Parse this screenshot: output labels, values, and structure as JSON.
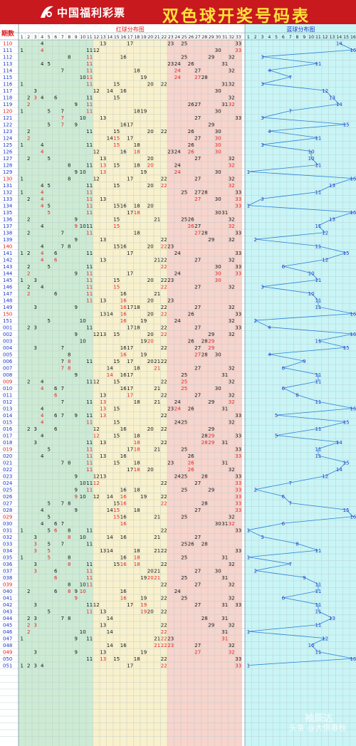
{
  "header": {
    "logo_text": "中国福利彩票",
    "title": "双色球开奖号码表"
  },
  "table": {
    "period_label": "期数",
    "red_section_label": "红球分布图",
    "blue_section_label": "蓝球分布图"
  },
  "watermark": {
    "text": "头条 @大俱春秋",
    "brand": "袖辰达"
  },
  "colors": {
    "header_bg": "#c8191e",
    "title": "#ffe23a",
    "red_zone_1": "#cdebd4",
    "red_zone_2": "#f8f1cc",
    "red_zone_3": "#f7d4cc",
    "blue_zone": "#c9f5f6",
    "red_number": "#e41e1e",
    "blue_number": "#1d36c8",
    "black_number": "#111111",
    "blue_line": "#2a7fd9"
  },
  "chart_data": {
    "type": "table",
    "red_columns": [
      "1",
      "2",
      "3",
      "4",
      "5",
      "6",
      "7",
      "8",
      "9",
      "10",
      "11",
      "12",
      "13",
      "14",
      "15",
      "16",
      "17",
      "18",
      "19",
      "20",
      "21",
      "22",
      "23",
      "24",
      "25",
      "26",
      "27",
      "28",
      "29",
      "30",
      "31",
      "32",
      "33"
    ],
    "blue_columns": [
      "1",
      "2",
      "3",
      "4",
      "5",
      "6",
      "7",
      "8",
      "9",
      "10",
      "11",
      "12",
      "13",
      "14",
      "15",
      "16"
    ],
    "draws": [
      {
        "period": "110",
        "red": [
          4,
          13,
          17,
          23,
          25,
          33
        ],
        "blue": 14
      },
      {
        "period": "111",
        "red": [
          1,
          4,
          11,
          12,
          30,
          33
        ],
        "blue": 16
      },
      {
        "period": "112",
        "red": [
          8,
          11,
          16,
          25,
          29,
          32
        ],
        "blue": 3
      },
      {
        "period": "113",
        "red": [
          4,
          5,
          11,
          23,
          24,
          26,
          31
        ],
        "blue": 11
      },
      {
        "period": "114",
        "red": [
          7,
          11,
          18,
          24,
          27,
          32
        ],
        "blue": 4
      },
      {
        "period": "115",
        "red": [
          10,
          11,
          19,
          24,
          27,
          28
        ],
        "blue": 7
      },
      {
        "period": "116",
        "red": [
          1,
          11,
          15,
          20,
          22,
          31,
          32
        ],
        "blue": 3
      },
      {
        "period": "117",
        "red": [
          3,
          12,
          14,
          16,
          30
        ],
        "blue": 12
      },
      {
        "period": "118",
        "red": [
          2,
          3,
          4,
          6,
          11,
          15,
          32
        ],
        "blue": 13
      },
      {
        "period": "119",
        "red": [
          2,
          9,
          11,
          26,
          27,
          31,
          32
        ],
        "blue": 14
      },
      {
        "period": "120",
        "red": [
          1,
          5,
          7,
          11,
          18,
          19,
          30
        ],
        "blue": 7
      },
      {
        "period": "121",
        "red": [
          7,
          10,
          13,
          27,
          33
        ],
        "blue": 3
      },
      {
        "period": "122",
        "red": [
          5,
          7,
          9,
          16,
          17,
          29
        ],
        "blue": 15
      },
      {
        "period": "123",
        "red": [
          2,
          11,
          15,
          20,
          22,
          26,
          30
        ],
        "blue": 4
      },
      {
        "period": "124",
        "red": [
          2,
          14,
          15,
          17,
          27,
          30
        ],
        "blue": 11
      },
      {
        "period": "125",
        "red": [
          1,
          4,
          11,
          15,
          18,
          26,
          30
        ],
        "blue": 3
      },
      {
        "period": "126",
        "red": [
          4,
          12,
          16,
          18,
          23,
          24,
          26,
          30
        ],
        "blue": 10
      },
      {
        "period": "127",
        "red": [
          2,
          5,
          13,
          20,
          27,
          32
        ],
        "blue": 10
      },
      {
        "period": "128",
        "red": [
          8,
          11,
          13,
          15,
          18,
          20,
          24,
          32
        ],
        "blue": 11
      },
      {
        "period": "129",
        "red": [
          9,
          10,
          13,
          19,
          24,
          30
        ],
        "blue": 1
      },
      {
        "period": "130",
        "red": [
          1,
          8,
          12,
          17,
          22,
          27,
          32
        ],
        "blue": 16
      },
      {
        "period": "131",
        "red": [
          4,
          5,
          11,
          15,
          20,
          22,
          32
        ],
        "blue": 13
      },
      {
        "period": "132",
        "red": [
          1,
          4,
          11,
          25,
          27,
          28,
          33
        ],
        "blue": 11
      },
      {
        "period": "133",
        "red": [
          2,
          4,
          11,
          13,
          27,
          30,
          33
        ],
        "blue": 3
      },
      {
        "period": "134",
        "red": [
          4,
          5,
          11,
          15,
          16,
          18,
          20,
          33
        ],
        "blue": 1
      },
      {
        "period": "135",
        "red": [
          5,
          11,
          17,
          18,
          30,
          31
        ],
        "blue": 16
      },
      {
        "period": "136",
        "red": [
          2,
          9,
          15,
          21,
          25,
          26,
          32
        ],
        "blue": 13
      },
      {
        "period": "137",
        "red": [
          4,
          9,
          10,
          11,
          15,
          26,
          27,
          32
        ],
        "blue": 11
      },
      {
        "period": "138",
        "red": [
          2,
          7,
          11,
          18,
          27,
          28,
          33
        ],
        "blue": 12
      },
      {
        "period": "139",
        "red": [
          9,
          13,
          22,
          29,
          32
        ],
        "blue": 2
      },
      {
        "period": "140",
        "red": [
          4,
          7,
          8,
          15,
          16,
          20,
          22,
          23
        ],
        "blue": 11
      },
      {
        "period": "141",
        "red": [
          1,
          2,
          4,
          6,
          11,
          17,
          24,
          33
        ],
        "blue": 15
      },
      {
        "period": "142",
        "red": [
          4,
          6,
          13,
          21,
          22,
          27,
          32
        ],
        "blue": 12
      },
      {
        "period": "143",
        "red": [
          2,
          5,
          11,
          22,
          30,
          33
        ],
        "blue": 6
      },
      {
        "period": "144",
        "red": [
          2,
          9,
          11,
          17,
          24,
          30,
          33
        ],
        "blue": 10
      },
      {
        "period": "145",
        "red": [
          1,
          3,
          11,
          15,
          20,
          22,
          23,
          30
        ],
        "blue": 11
      },
      {
        "period": "146",
        "red": [
          2,
          4,
          11,
          15,
          22,
          27,
          32
        ],
        "blue": 3
      },
      {
        "period": "147",
        "red": [
          2,
          6,
          11,
          16,
          21
        ],
        "blue": 10
      },
      {
        "period": "148",
        "red": [
          11,
          13,
          16,
          20,
          23
        ],
        "blue": 11
      },
      {
        "period": "149",
        "red": [
          3,
          9,
          16,
          17,
          18,
          22,
          27,
          32
        ],
        "blue": 11
      },
      {
        "period": "150",
        "red": [
          13,
          14,
          16,
          20,
          22,
          26,
          33
        ],
        "blue": 16
      },
      {
        "period": "151",
        "red": [
          5,
          10,
          16,
          19,
          24,
          32
        ],
        "blue": 2
      },
      {
        "period": "001",
        "red": [
          2,
          3,
          11,
          17,
          18,
          22,
          27,
          33
        ],
        "blue": 4
      },
      {
        "period": "002",
        "red": [
          9,
          12,
          13,
          15,
          20,
          22,
          29,
          32
        ],
        "blue": 16
      },
      {
        "period": "003",
        "red": [
          10,
          19,
          20,
          26,
          28,
          29
        ],
        "blue": 11
      },
      {
        "period": "004",
        "red": [
          3,
          7,
          16,
          17,
          22,
          27,
          29
        ],
        "blue": 15
      },
      {
        "period": "005",
        "red": [
          8,
          16,
          19,
          27,
          28,
          30
        ],
        "blue": 4
      },
      {
        "period": "006",
        "red": [
          7,
          8,
          11,
          15,
          17,
          20,
          21,
          22
        ],
        "blue": 9
      },
      {
        "period": "007",
        "red": [
          7,
          8,
          14,
          18,
          21,
          27,
          32
        ],
        "blue": 6
      },
      {
        "period": "008",
        "red": [
          9,
          14,
          16,
          17,
          25,
          31
        ],
        "blue": 11
      },
      {
        "period": "009",
        "red": [
          2,
          4,
          11,
          12,
          15,
          22,
          25,
          32
        ],
        "blue": 11
      },
      {
        "period": "010",
        "red": [
          4,
          6,
          7,
          16,
          17,
          21,
          25,
          30
        ],
        "blue": 6
      },
      {
        "period": "011",
        "red": [
          6,
          13,
          17,
          22,
          27,
          32
        ],
        "blue": 8
      },
      {
        "period": "012",
        "red": [
          7,
          11,
          13,
          18,
          21,
          24,
          29,
          32
        ],
        "blue": 11
      },
      {
        "period": "013",
        "red": [
          4,
          13,
          15,
          23,
          24,
          26,
          31
        ],
        "blue": 16
      },
      {
        "period": "014",
        "red": [
          4,
          6,
          7,
          9,
          11,
          13,
          22,
          33
        ],
        "blue": 5
      },
      {
        "period": "015",
        "red": [
          4,
          11,
          15,
          24,
          25,
          32
        ],
        "blue": 15
      },
      {
        "period": "016",
        "red": [
          2,
          3,
          6,
          12,
          16,
          20,
          22,
          29
        ],
        "blue": 11
      },
      {
        "period": "017",
        "red": [
          4,
          12,
          15,
          18,
          28,
          29,
          33
        ],
        "blue": 5
      },
      {
        "period": "018",
        "red": [
          3,
          11,
          13,
          18,
          22,
          28,
          29,
          31
        ],
        "blue": 14
      },
      {
        "period": "019",
        "red": [
          5,
          11,
          17,
          18,
          21,
          25,
          33
        ],
        "blue": 11
      },
      {
        "period": "020",
        "red": [
          4,
          11,
          13,
          16,
          26,
          33
        ],
        "blue": 11
      },
      {
        "period": "021",
        "red": [
          7,
          8,
          11,
          15,
          18,
          23,
          26,
          31
        ],
        "blue": 15
      },
      {
        "period": "022",
        "red": [
          11,
          17,
          18,
          20,
          26,
          32
        ],
        "blue": 14
      },
      {
        "period": "023",
        "red": [
          9,
          12,
          13,
          24,
          25,
          28,
          33
        ],
        "blue": 12
      },
      {
        "period": "024",
        "red": [
          10,
          11,
          12,
          22,
          27,
          33
        ],
        "blue": 7
      },
      {
        "period": "025",
        "red": [
          9,
          11,
          16,
          18,
          25,
          29,
          33
        ],
        "blue": 2
      },
      {
        "period": "026",
        "red": [
          9,
          10,
          12,
          14,
          16,
          19,
          22,
          33
        ],
        "blue": 6
      },
      {
        "period": "027",
        "red": [
          5,
          7,
          8,
          15,
          16,
          22,
          28,
          33
        ],
        "blue": 7
      },
      {
        "period": "028",
        "red": [
          4,
          9,
          14,
          15,
          18,
          27,
          33
        ],
        "blue": 15
      },
      {
        "period": "029",
        "red": [
          5,
          15,
          16,
          21,
          25,
          32
        ],
        "blue": 16
      },
      {
        "period": "030",
        "red": [
          4,
          6,
          7,
          16,
          30,
          31,
          32
        ],
        "blue": 6
      },
      {
        "period": "031",
        "red": [
          1,
          5,
          6,
          8,
          11,
          22,
          33
        ],
        "blue": 1
      },
      {
        "period": "032",
        "red": [
          3,
          8,
          10,
          14,
          16,
          21,
          27
        ],
        "blue": 3
      },
      {
        "period": "033",
        "red": [
          3,
          5,
          7,
          11,
          25,
          26,
          28
        ],
        "blue": 8
      },
      {
        "period": "034",
        "red": [
          3,
          5,
          13,
          14,
          18,
          21,
          22,
          33
        ],
        "blue": 11
      },
      {
        "period": "035",
        "red": [
          1,
          5,
          8,
          16,
          18,
          25,
          31
        ],
        "blue": 1
      },
      {
        "period": "036",
        "red": [
          3,
          8,
          11,
          15,
          16,
          18,
          22,
          32
        ],
        "blue": 7
      },
      {
        "period": "037",
        "red": [
          3,
          6,
          11,
          20,
          21,
          27,
          30
        ],
        "blue": 2
      },
      {
        "period": "038",
        "red": [
          6,
          11,
          19,
          20,
          21,
          25,
          31
        ],
        "blue": 9
      },
      {
        "period": "039",
        "red": [
          8,
          10,
          11,
          22,
          27,
          32
        ],
        "blue": 11
      },
      {
        "period": "040",
        "red": [
          2,
          6,
          8,
          9,
          10,
          16,
          24
        ],
        "blue": 11
      },
      {
        "period": "041",
        "red": [
          9,
          16,
          19,
          22,
          25,
          32
        ],
        "blue": 6
      },
      {
        "period": "042",
        "red": [
          3,
          11,
          12,
          17,
          19,
          27,
          31,
          33
        ],
        "blue": 11
      },
      {
        "period": "043",
        "red": [
          5,
          11,
          13,
          19,
          20,
          22
        ],
        "blue": 11
      },
      {
        "period": "044",
        "red": [
          2,
          3,
          7,
          8,
          14,
          28,
          31
        ],
        "blue": 13
      },
      {
        "period": "045",
        "red": [
          2,
          3,
          13,
          22,
          29,
          32
        ],
        "blue": 11
      },
      {
        "period": "046",
        "red": [
          2,
          10,
          14,
          22,
          31
        ],
        "blue": 1
      },
      {
        "period": "047",
        "red": [
          1,
          9,
          11,
          21,
          22,
          23,
          31
        ],
        "blue": 12
      },
      {
        "period": "048",
        "red": [
          14,
          16,
          21,
          22,
          23,
          27,
          32
        ],
        "blue": 10
      },
      {
        "period": "049",
        "red": [
          3,
          9,
          13,
          19,
          27,
          32
        ],
        "blue": 11
      },
      {
        "period": "050",
        "red": [
          11,
          13,
          15,
          18,
          22,
          33
        ],
        "blue": 16
      },
      {
        "period": "051",
        "red": [
          1,
          2,
          3,
          4,
          17,
          22,
          33
        ],
        "blue": 1
      }
    ]
  }
}
